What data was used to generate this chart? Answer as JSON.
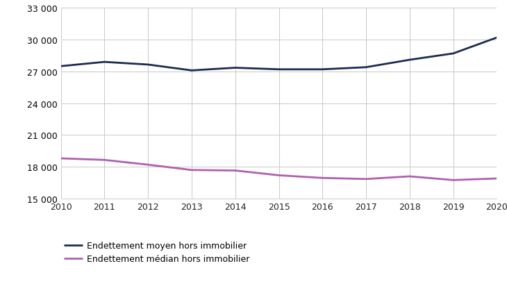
{
  "years": [
    2010,
    2011,
    2012,
    2013,
    2014,
    2015,
    2016,
    2017,
    2018,
    2019,
    2020
  ],
  "moyen": [
    27500,
    27900,
    27650,
    27100,
    27350,
    27200,
    27200,
    27400,
    28100,
    28700,
    30200
  ],
  "median": [
    18800,
    18650,
    18200,
    17700,
    17650,
    17200,
    16950,
    16850,
    17100,
    16750,
    16900
  ],
  "color_moyen": "#1c2b52",
  "color_median": "#b060b0",
  "ylim": [
    15000,
    33000
  ],
  "yticks": [
    15000,
    18000,
    21000,
    24000,
    27000,
    30000,
    33000
  ],
  "legend_moyen": "Endettement moyen hors immobilier",
  "legend_median": "Endettement médian hors immobilier",
  "line_width": 2.0,
  "bg_color": "#ffffff",
  "grid_color": "#c8c8c8"
}
